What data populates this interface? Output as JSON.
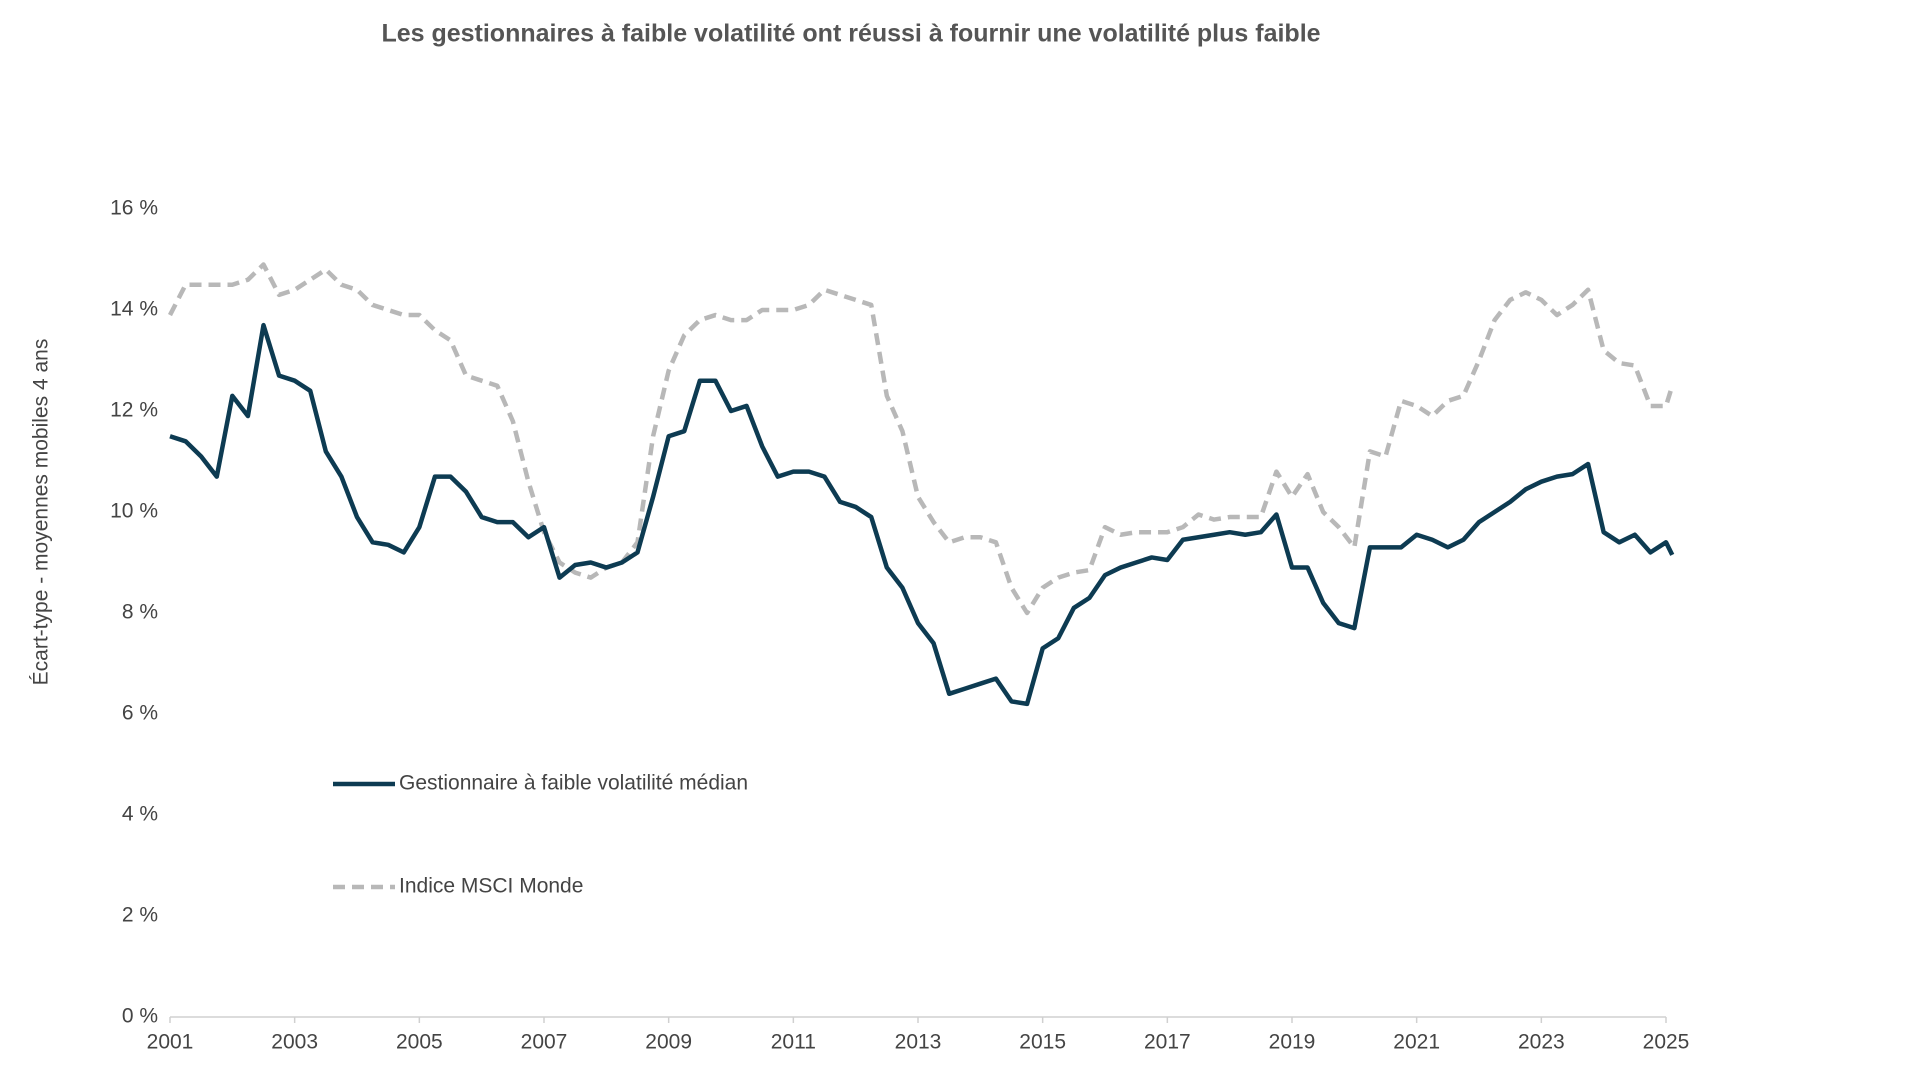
{
  "chart_data": {
    "type": "line",
    "title": "Les gestionnaires à faible volatilité ont réussi à fournir une volatilité plus faible",
    "y_label": "Écart-type - moyennes mobiles 4 ans",
    "xlim": [
      2001,
      2025
    ],
    "xticks": [
      2001,
      2003,
      2005,
      2007,
      2009,
      2011,
      2013,
      2015,
      2017,
      2019,
      2021,
      2023,
      2025
    ],
    "ylim": [
      0,
      16
    ],
    "yticks": [
      {
        "value": 0,
        "label": "0 %"
      },
      {
        "value": 2,
        "label": "2 %"
      },
      {
        "value": 4,
        "label": "4 %"
      },
      {
        "value": 6,
        "label": "6 %"
      },
      {
        "value": 8,
        "label": "8 %"
      },
      {
        "value": 10,
        "label": "10 %"
      },
      {
        "value": 12,
        "label": "12 %"
      },
      {
        "value": 14,
        "label": "14 %"
      },
      {
        "value": 16,
        "label": "16 %"
      }
    ],
    "grid": false,
    "x": [
      2001.0,
      2001.25,
      2001.5,
      2001.75,
      2002.0,
      2002.25,
      2002.5,
      2002.75,
      2003.0,
      2003.25,
      2003.5,
      2003.75,
      2004.0,
      2004.25,
      2004.5,
      2004.75,
      2005.0,
      2005.25,
      2005.5,
      2005.75,
      2006.0,
      2006.25,
      2006.5,
      2006.75,
      2007.0,
      2007.25,
      2007.5,
      2007.75,
      2008.0,
      2008.25,
      2008.5,
      2008.75,
      2009.0,
      2009.25,
      2009.5,
      2009.75,
      2010.0,
      2010.25,
      2010.5,
      2010.75,
      2011.0,
      2011.25,
      2011.5,
      2011.75,
      2012.0,
      2012.25,
      2012.5,
      2012.75,
      2013.0,
      2013.25,
      2013.5,
      2013.75,
      2014.0,
      2014.25,
      2014.5,
      2014.75,
      2015.0,
      2015.25,
      2015.5,
      2015.75,
      2016.0,
      2016.25,
      2016.5,
      2016.75,
      2017.0,
      2017.25,
      2017.5,
      2017.75,
      2018.0,
      2018.25,
      2018.5,
      2018.75,
      2019.0,
      2019.25,
      2019.5,
      2019.75,
      2020.0,
      2020.25,
      2020.5,
      2020.75,
      2021.0,
      2021.25,
      2021.5,
      2021.75,
      2022.0,
      2022.25,
      2022.5,
      2022.75,
      2023.0,
      2023.25,
      2023.5,
      2023.75,
      2024.0,
      2024.25,
      2024.5,
      2024.75,
      2025.0,
      2025.1
    ],
    "series": [
      {
        "name": "Gestionnaire à faible volatilité médian",
        "color": "#0d3b52",
        "dash": false,
        "values": [
          11.5,
          11.4,
          11.1,
          10.7,
          12.3,
          11.9,
          13.7,
          12.7,
          12.6,
          12.4,
          11.2,
          10.7,
          9.9,
          9.4,
          9.35,
          9.2,
          9.7,
          10.7,
          10.7,
          10.4,
          9.9,
          9.8,
          9.8,
          9.5,
          9.7,
          8.7,
          8.95,
          9.0,
          8.9,
          9.0,
          9.2,
          10.3,
          11.5,
          11.6,
          12.6,
          12.6,
          12.0,
          12.1,
          11.3,
          10.7,
          10.8,
          10.8,
          10.7,
          10.2,
          10.1,
          9.9,
          8.9,
          8.5,
          7.8,
          7.4,
          6.4,
          6.5,
          6.6,
          6.7,
          6.25,
          6.2,
          7.3,
          7.5,
          8.1,
          8.3,
          8.75,
          8.9,
          9.0,
          9.1,
          9.05,
          9.45,
          9.5,
          9.55,
          9.6,
          9.55,
          9.6,
          9.95,
          8.9,
          8.9,
          8.2,
          7.8,
          7.7,
          9.3,
          9.3,
          9.3,
          9.55,
          9.45,
          9.3,
          9.45,
          9.8,
          10.0,
          10.2,
          10.45,
          10.6,
          10.7,
          10.75,
          10.95,
          9.6,
          9.4,
          9.55,
          9.2,
          9.4,
          9.15
        ]
      },
      {
        "name": "Indice MSCI Monde",
        "color": "#b8b8b8",
        "dash": true,
        "values": [
          13.9,
          14.5,
          14.5,
          14.5,
          14.5,
          14.6,
          14.9,
          14.3,
          14.4,
          14.6,
          14.8,
          14.5,
          14.4,
          14.1,
          14.0,
          13.9,
          13.9,
          13.6,
          13.4,
          12.7,
          12.6,
          12.5,
          11.8,
          10.6,
          9.6,
          9.0,
          8.8,
          8.7,
          8.9,
          9.0,
          9.4,
          11.5,
          12.8,
          13.5,
          13.8,
          13.9,
          13.8,
          13.8,
          14.0,
          14.0,
          14.0,
          14.1,
          14.4,
          14.3,
          14.2,
          14.1,
          12.3,
          11.6,
          10.3,
          9.8,
          9.4,
          9.5,
          9.5,
          9.4,
          8.5,
          8.0,
          8.5,
          8.7,
          8.8,
          8.85,
          9.7,
          9.55,
          9.6,
          9.6,
          9.6,
          9.7,
          9.95,
          9.85,
          9.9,
          9.9,
          9.9,
          10.8,
          10.3,
          10.75,
          10.0,
          9.7,
          9.3,
          11.2,
          11.1,
          12.2,
          12.1,
          11.9,
          12.2,
          12.3,
          13.0,
          13.8,
          14.2,
          14.35,
          14.2,
          13.9,
          14.1,
          14.4,
          13.2,
          12.95,
          12.9,
          12.1,
          12.1,
          12.5
        ]
      }
    ]
  }
}
